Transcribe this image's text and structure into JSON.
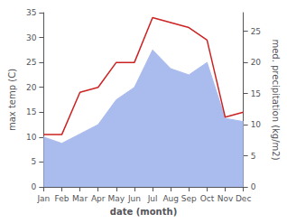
{
  "chart_data": {
    "type": "line",
    "xlabel": "date (month)",
    "ylabel": "max temp (C)",
    "y2label": "med. precipitation (kg/m2)",
    "categories": [
      "Jan",
      "Feb",
      "Mar",
      "Apr",
      "May",
      "Jun",
      "Jul",
      "Aug",
      "Sep",
      "Oct",
      "Nov",
      "Dec"
    ],
    "series": [
      {
        "type": "area",
        "axis": "y2",
        "color": "#aabbee",
        "values": [
          8.0,
          7.0,
          8.5,
          10.0,
          14.0,
          16.0,
          22.0,
          19.0,
          18.0,
          20.0,
          11.0,
          10.5
        ]
      },
      {
        "type": "line",
        "color": "#cc2222",
        "values": [
          10.5,
          10.5,
          19.0,
          20.0,
          25.0,
          25.0,
          34.0,
          33.0,
          32.0,
          29.5,
          14.0,
          15.0
        ]
      }
    ],
    "ylim": [
      0,
      35
    ],
    "yticks": [
      0,
      5,
      10,
      15,
      20,
      25,
      30,
      35
    ],
    "y2lim": [
      0,
      28
    ],
    "y2ticks": [
      0,
      5,
      10,
      15,
      20,
      25
    ],
    "grid": false
  }
}
